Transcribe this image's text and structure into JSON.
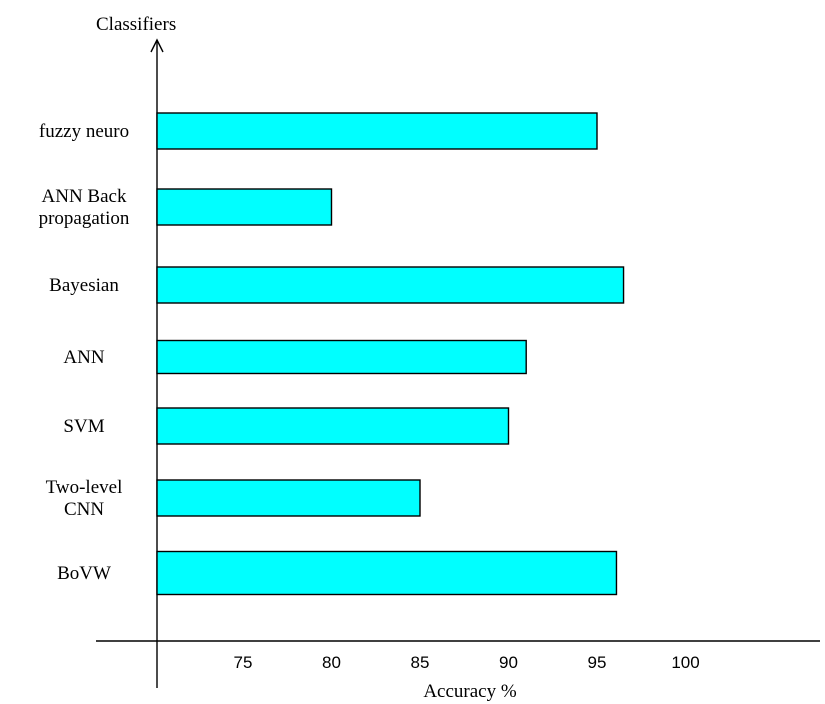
{
  "chart_data": {
    "type": "bar",
    "orientation": "horizontal",
    "categories": [
      [
        "fuzzy neuro"
      ],
      [
        "ANN Back",
        "propagation"
      ],
      [
        "Bayesian"
      ],
      [
        "ANN"
      ],
      [
        "SVM"
      ],
      [
        "Two-level",
        "CNN"
      ],
      [
        "BoVW"
      ]
    ],
    "values": [
      95,
      80,
      96.5,
      91,
      90,
      85,
      96.1
    ],
    "xlabel": "Accuracy %",
    "ylabel": "Classifiers",
    "xticks": [
      75,
      80,
      85,
      90,
      95,
      100
    ],
    "bar_color": "#00FFFF",
    "grid": false,
    "legend": "none"
  }
}
